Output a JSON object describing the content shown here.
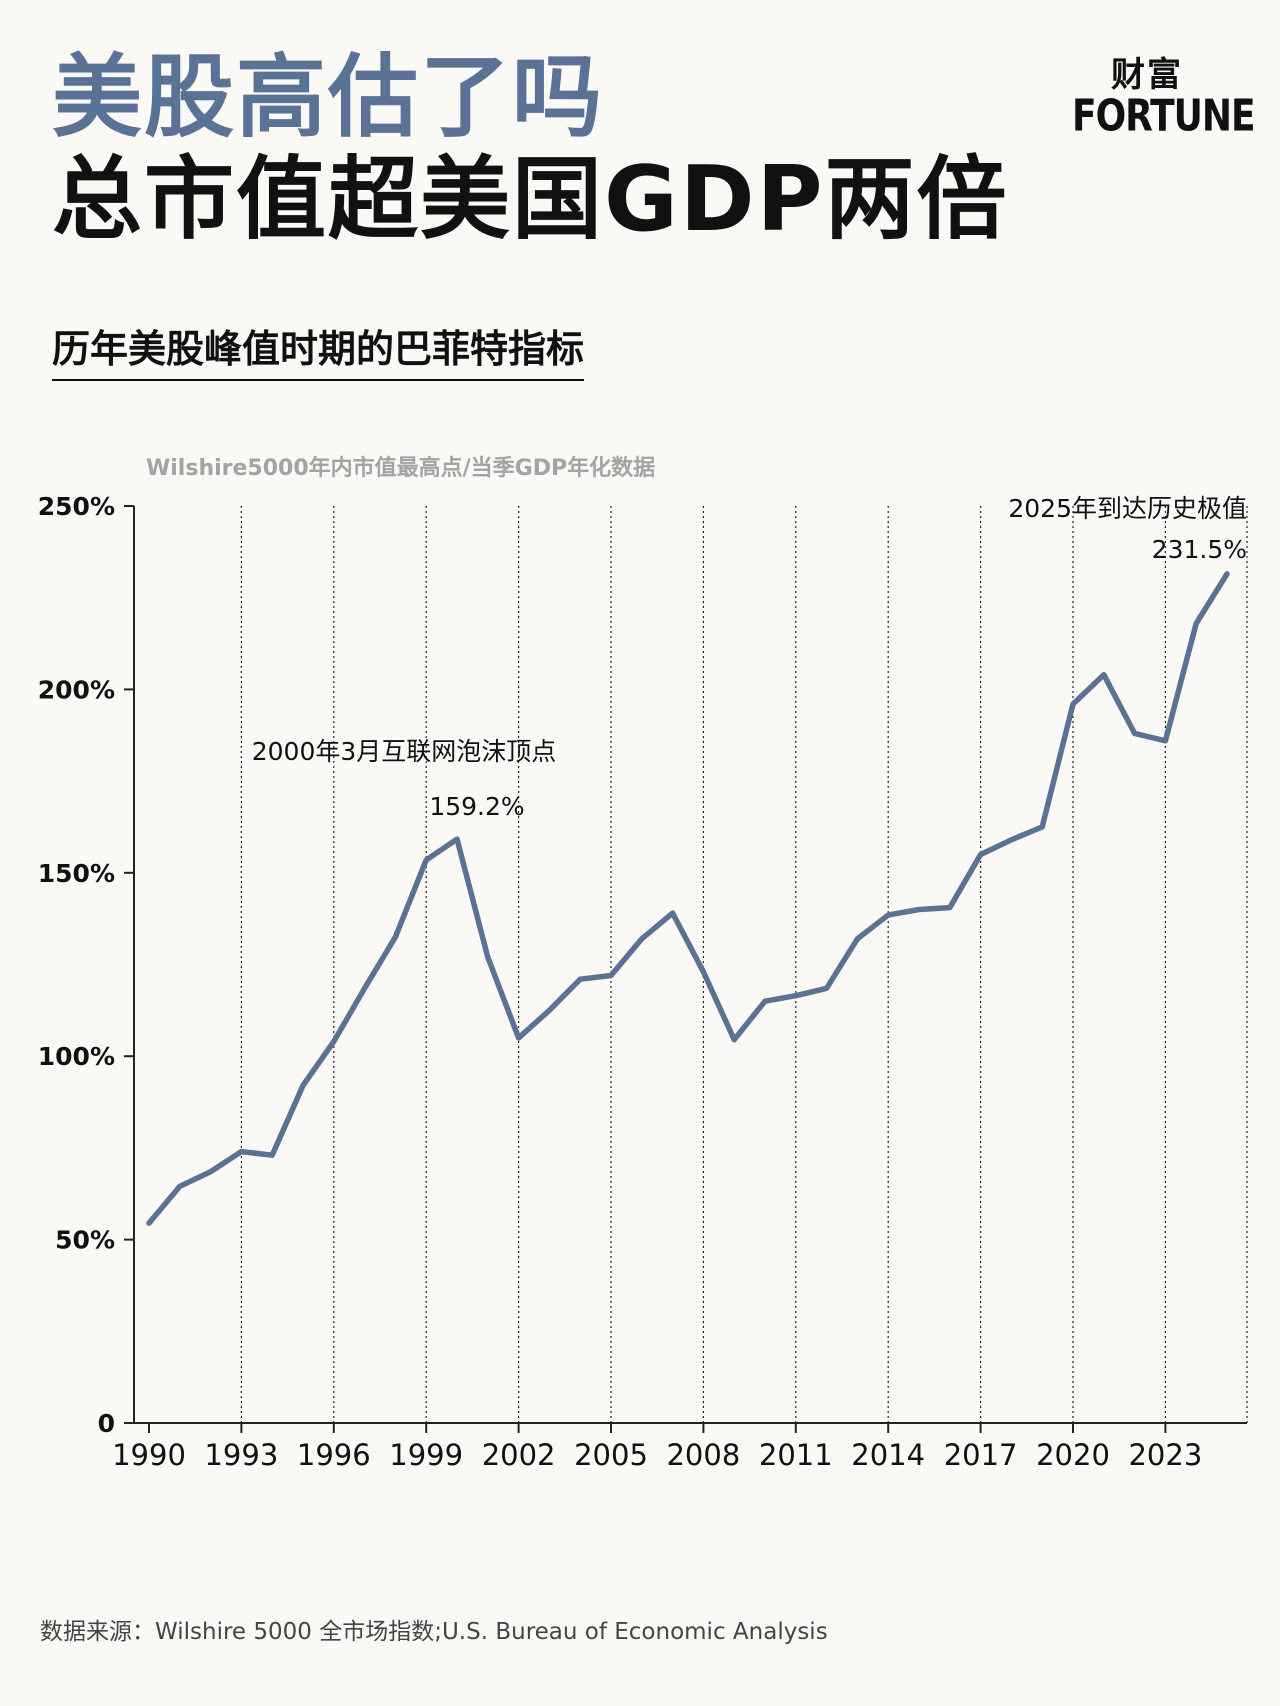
{
  "header": {
    "title_line1": "美股高估了吗",
    "title_line2": "总市值超美国GDP两倍"
  },
  "logo": {
    "chinese": "财富",
    "english": "FORTUNE"
  },
  "subtitle": "历年美股峰值时期的巴菲特指标",
  "chart_note": "Wilshire5000年内市值最高点/当季GDP年化数据",
  "source": "数据来源：Wilshire 5000 全市场指数;U.S. Bureau of Economic Analysis",
  "colors": {
    "line": "#5a7296",
    "title_accent": "#5a7296",
    "text": "#111111",
    "note": "#a3a3a3",
    "background": "#faf9f6"
  },
  "chart_data": {
    "type": "line",
    "title": "",
    "xlabel": "",
    "ylabel": "",
    "x_ticks": [
      "1990",
      "1993",
      "1996",
      "1999",
      "2002",
      "2005",
      "2008",
      "2011",
      "2014",
      "2017",
      "2020",
      "2023"
    ],
    "y_ticks": [
      "0",
      "50%",
      "100%",
      "150%",
      "200%",
      "250%"
    ],
    "xlim": [
      1990,
      2025
    ],
    "ylim": [
      0,
      250
    ],
    "grid": "vertical dotted lines at each x tick",
    "series": [
      {
        "x": [
          1990,
          1991,
          1992,
          1993,
          1994,
          1995,
          1996,
          1997,
          1998,
          1999,
          2000,
          2001,
          2002,
          2003,
          2004,
          2005,
          2006,
          2007,
          2008,
          2009,
          2010,
          2011,
          2012,
          2013,
          2014,
          2015,
          2016,
          2017,
          2018,
          2019,
          2020,
          2021,
          2022,
          2023,
          2024,
          2025
        ],
        "y": [
          54.5,
          64.5,
          68.5,
          74,
          73,
          92,
          104,
          118.5,
          132.5,
          153.5,
          159.2,
          127,
          105,
          112.5,
          121,
          122,
          132,
          139,
          123,
          104.5,
          115,
          116.5,
          118.5,
          132,
          138.5,
          140,
          140.5,
          155,
          159,
          162.5,
          196,
          204,
          188,
          186,
          218,
          231.5
        ]
      }
    ],
    "annotations": [
      {
        "text": "2000年3月互联网泡沫顶点",
        "value_label": "159.2%",
        "x": 2000,
        "y": 159.2
      },
      {
        "text": "2025年到达历史极值",
        "value_label": "231.5%",
        "x": 2025,
        "y": 231.5
      }
    ]
  }
}
